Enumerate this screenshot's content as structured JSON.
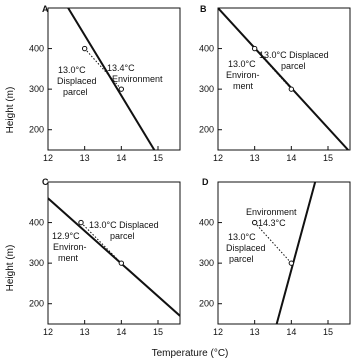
{
  "figure": {
    "y_axis_label": "Height (m)",
    "x_axis_label": "Temperature (°C)",
    "x_ticks": [
      "12",
      "13",
      "14",
      "15"
    ],
    "y_ticks": [
      "200",
      "300",
      "400"
    ],
    "panels": [
      {
        "letter": "A",
        "environment_line": [
          [
            12.55,
            500
          ],
          [
            14.9,
            150
          ]
        ],
        "parcel_path": [
          [
            13.0,
            400
          ],
          [
            14.0,
            300
          ]
        ],
        "labels": [
          "13.4°C",
          "Environment",
          "13.0°C",
          "Displaced",
          "parcel"
        ]
      },
      {
        "letter": "B",
        "environment_line": [
          [
            12.0,
            500
          ],
          [
            15.55,
            150
          ]
        ],
        "parcel_path": [
          [
            13.0,
            400
          ],
          [
            14.0,
            300
          ]
        ],
        "labels": [
          "13.0°C Displaced",
          "parcel",
          "13.0°C",
          "Environ-",
          "ment"
        ]
      },
      {
        "letter": "C",
        "environment_line": [
          [
            12.0,
            460
          ],
          [
            15.6,
            170
          ]
        ],
        "parcel_path": [
          [
            12.9,
            400
          ],
          [
            14.0,
            300
          ]
        ],
        "labels": [
          "13.0°C Displaced",
          "parcel",
          "12.9°C",
          "Environ-",
          "ment"
        ]
      },
      {
        "letter": "D",
        "environment_line": [
          [
            13.6,
            150
          ],
          [
            14.65,
            500
          ]
        ],
        "parcel_path": [
          [
            13.0,
            400
          ],
          [
            14.0,
            300
          ]
        ],
        "labels": [
          "Environment",
          "14.3°C",
          "13.0°C",
          "Displaced",
          "parcel"
        ]
      }
    ]
  }
}
